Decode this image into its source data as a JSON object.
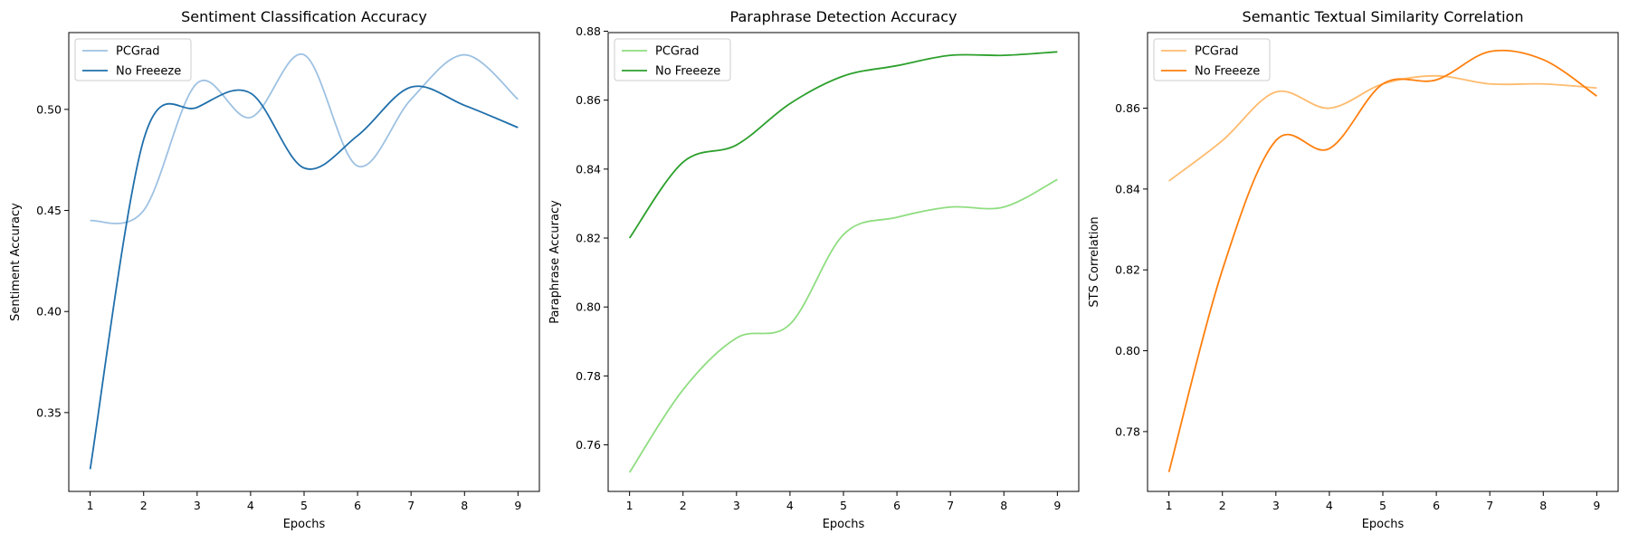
{
  "chart_data": [
    {
      "type": "line",
      "title": "Sentiment Classification Accuracy",
      "xlabel": "Epochs",
      "ylabel": "Sentiment Accuracy",
      "x": [
        1,
        2,
        3,
        4,
        5,
        6,
        7,
        8,
        9
      ],
      "xlim": [
        0.6,
        9.4
      ],
      "ylim": [
        0.311,
        0.538
      ],
      "yticks": [
        0.35,
        0.4,
        0.45,
        0.5
      ],
      "ytick_labels": [
        "0.35",
        "0.40",
        "0.45",
        "0.50"
      ],
      "legend": "top-left",
      "grid": false,
      "series": [
        {
          "name": "PCGrad",
          "color": "#9ec2e2",
          "values": [
            0.445,
            0.45,
            0.513,
            0.496,
            0.527,
            0.472,
            0.505,
            0.527,
            0.505
          ]
        },
        {
          "name": "No Freeeze",
          "color": "#1f6fab",
          "values": [
            0.322,
            0.485,
            0.501,
            0.508,
            0.471,
            0.487,
            0.511,
            0.502,
            0.491
          ]
        }
      ]
    },
    {
      "type": "line",
      "title": "Paraphrase Detection Accuracy",
      "xlabel": "Epochs",
      "ylabel": "Paraphrase Accuracy",
      "x": [
        1,
        2,
        3,
        4,
        5,
        6,
        7,
        8,
        9
      ],
      "xlim": [
        0.6,
        9.4
      ],
      "ylim": [
        0.7465,
        0.8796
      ],
      "yticks": [
        0.76,
        0.78,
        0.8,
        0.82,
        0.84,
        0.86,
        0.88
      ],
      "ytick_labels": [
        "0.76",
        "0.78",
        "0.80",
        "0.82",
        "0.84",
        "0.86",
        "0.88"
      ],
      "legend": "top-left",
      "grid": false,
      "series": [
        {
          "name": "PCGrad",
          "color": "#8fdd80",
          "values": [
            0.752,
            0.776,
            0.791,
            0.795,
            0.821,
            0.826,
            0.829,
            0.829,
            0.837
          ]
        },
        {
          "name": "No Freeeze",
          "color": "#2ca02c",
          "values": [
            0.82,
            0.842,
            0.847,
            0.859,
            0.867,
            0.87,
            0.873,
            0.873,
            0.874
          ]
        }
      ]
    },
    {
      "type": "line",
      "title": "Semantic Textual Similarity Correlation",
      "xlabel": "Epochs",
      "ylabel": "STS Correlation",
      "x": [
        1,
        2,
        3,
        4,
        5,
        6,
        7,
        8,
        9
      ],
      "xlim": [
        0.6,
        9.4
      ],
      "ylim": [
        0.7652,
        0.8787
      ],
      "yticks": [
        0.78,
        0.8,
        0.82,
        0.84,
        0.86
      ],
      "ytick_labels": [
        "0.78",
        "0.80",
        "0.82",
        "0.84",
        "0.86"
      ],
      "legend": "top-left",
      "grid": false,
      "series": [
        {
          "name": "PCGrad",
          "color": "#ffbb6e",
          "values": [
            0.842,
            0.852,
            0.864,
            0.86,
            0.866,
            0.868,
            0.866,
            0.866,
            0.865
          ]
        },
        {
          "name": "No Freeeze",
          "color": "#ff7f0e",
          "values": [
            0.77,
            0.82,
            0.852,
            0.85,
            0.866,
            0.867,
            0.874,
            0.872,
            0.863
          ]
        }
      ]
    }
  ]
}
